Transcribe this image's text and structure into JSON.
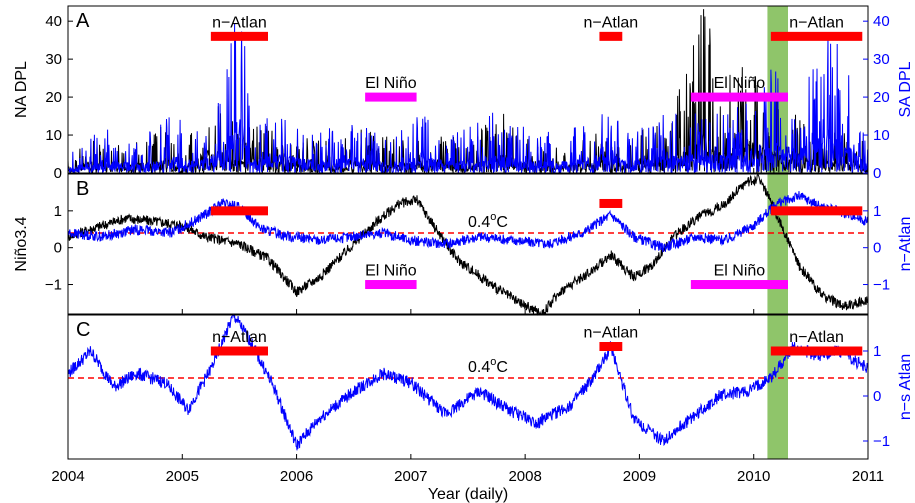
{
  "chart_data": [
    {
      "panel": "A",
      "type": "line",
      "xlim": [
        2004,
        2011
      ],
      "y_left": {
        "label": "NA DPL",
        "ticks": [
          0,
          10,
          20,
          30,
          40
        ],
        "range": [
          0,
          44
        ],
        "color": "#000000"
      },
      "y_right": {
        "label": "SA DPL",
        "ticks": [
          0,
          10,
          20,
          30,
          40
        ],
        "range": [
          0,
          44
        ],
        "color": "#0000ff"
      },
      "series": [
        {
          "axis": "left",
          "color": "#000000",
          "points": [
            [
              2004.0,
              3
            ],
            [
              2004.2,
              9
            ],
            [
              2004.5,
              6
            ],
            [
              2004.8,
              11
            ],
            [
              2005.0,
              4
            ],
            [
              2005.25,
              20
            ],
            [
              2005.5,
              9
            ],
            [
              2005.75,
              12
            ],
            [
              2006.0,
              8
            ],
            [
              2006.3,
              7
            ],
            [
              2006.6,
              10
            ],
            [
              2006.9,
              7
            ],
            [
              2007.2,
              11
            ],
            [
              2007.5,
              6
            ],
            [
              2007.8,
              15
            ],
            [
              2008.0,
              8
            ],
            [
              2008.3,
              6
            ],
            [
              2008.6,
              10
            ],
            [
              2008.9,
              8
            ],
            [
              2009.2,
              12
            ],
            [
              2009.45,
              24
            ],
            [
              2009.55,
              44
            ],
            [
              2009.7,
              17
            ],
            [
              2009.9,
              29
            ],
            [
              2010.05,
              21
            ],
            [
              2010.3,
              14
            ],
            [
              2010.6,
              9
            ],
            [
              2010.9,
              10
            ],
            [
              2011.0,
              5
            ]
          ]
        },
        {
          "axis": "right",
          "color": "#0000ff",
          "points": [
            [
              2004.0,
              4
            ],
            [
              2004.3,
              10
            ],
            [
              2004.6,
              7
            ],
            [
              2004.9,
              13
            ],
            [
              2005.15,
              9
            ],
            [
              2005.35,
              18
            ],
            [
              2005.5,
              43
            ],
            [
              2005.6,
              11
            ],
            [
              2005.9,
              14
            ],
            [
              2006.2,
              9
            ],
            [
              2006.5,
              12
            ],
            [
              2006.8,
              8
            ],
            [
              2007.1,
              13
            ],
            [
              2007.4,
              9
            ],
            [
              2007.7,
              14
            ],
            [
              2008.0,
              10
            ],
            [
              2008.3,
              9
            ],
            [
              2008.6,
              12
            ],
            [
              2008.75,
              20
            ],
            [
              2008.9,
              9
            ],
            [
              2009.2,
              13
            ],
            [
              2009.5,
              15
            ],
            [
              2009.8,
              13
            ],
            [
              2010.1,
              25
            ],
            [
              2010.4,
              18
            ],
            [
              2010.7,
              36
            ],
            [
              2010.9,
              14
            ],
            [
              2011.0,
              6
            ]
          ]
        }
      ],
      "bars": [
        {
          "label": "n−Atlan",
          "x0": 2005.25,
          "x1": 2005.75,
          "y": 36,
          "color": "#ff0000"
        },
        {
          "label": "n−Atlan",
          "x0": 2008.65,
          "x1": 2008.85,
          "y": 36,
          "color": "#ff0000"
        },
        {
          "label": "n−Atlan",
          "x0": 2010.15,
          "x1": 2010.95,
          "y": 36,
          "color": "#ff0000"
        },
        {
          "label": "El Niño",
          "x0": 2006.6,
          "x1": 2007.05,
          "y": 20,
          "color": "#ff00ff"
        },
        {
          "label": "El Niño",
          "x0": 2009.45,
          "x1": 2010.3,
          "y": 20,
          "color": "#ff00ff"
        }
      ]
    },
    {
      "panel": "B",
      "type": "line",
      "xlim": [
        2004,
        2011
      ],
      "y_left": {
        "label": "Niño3.4",
        "ticks": [
          -1,
          0,
          1
        ],
        "range": [
          -1.8,
          2.0
        ],
        "color": "#000000"
      },
      "y_right": {
        "label": "n−Atlan",
        "ticks": [
          -1,
          0,
          1
        ],
        "range": [
          -1.8,
          2.0
        ],
        "color": "#0000ff"
      },
      "threshold": {
        "value": 0.4,
        "label": "0.4",
        "superscript": "o",
        "unit": "C",
        "color": "#ff0000"
      },
      "series": [
        {
          "axis": "left",
          "color": "#000000",
          "points": [
            [
              2004.0,
              0.3
            ],
            [
              2004.2,
              0.5
            ],
            [
              2004.5,
              0.8
            ],
            [
              2004.8,
              0.7
            ],
            [
              2005.0,
              0.6
            ],
            [
              2005.2,
              0.3
            ],
            [
              2005.5,
              0.1
            ],
            [
              2005.75,
              -0.3
            ],
            [
              2006.0,
              -1.2
            ],
            [
              2006.2,
              -0.8
            ],
            [
              2006.5,
              0.1
            ],
            [
              2006.7,
              0.7
            ],
            [
              2006.9,
              1.2
            ],
            [
              2007.05,
              1.3
            ],
            [
              2007.2,
              0.6
            ],
            [
              2007.4,
              -0.3
            ],
            [
              2007.7,
              -1.0
            ],
            [
              2007.95,
              -1.5
            ],
            [
              2008.15,
              -1.8
            ],
            [
              2008.3,
              -1.2
            ],
            [
              2008.55,
              -0.7
            ],
            [
              2008.75,
              -0.2
            ],
            [
              2008.95,
              -0.8
            ],
            [
              2009.1,
              -0.5
            ],
            [
              2009.3,
              0.3
            ],
            [
              2009.5,
              0.8
            ],
            [
              2009.75,
              1.2
            ],
            [
              2009.9,
              1.7
            ],
            [
              2010.05,
              1.9
            ],
            [
              2010.2,
              0.9
            ],
            [
              2010.4,
              -0.5
            ],
            [
              2010.6,
              -1.3
            ],
            [
              2010.8,
              -1.6
            ],
            [
              2011.0,
              -1.4
            ]
          ]
        },
        {
          "axis": "right",
          "color": "#0000ff",
          "points": [
            [
              2004.0,
              0.4
            ],
            [
              2004.3,
              0.3
            ],
            [
              2004.6,
              0.5
            ],
            [
              2004.9,
              0.4
            ],
            [
              2005.15,
              0.8
            ],
            [
              2005.35,
              1.2
            ],
            [
              2005.5,
              1.1
            ],
            [
              2005.7,
              0.5
            ],
            [
              2005.95,
              0.3
            ],
            [
              2006.2,
              0.2
            ],
            [
              2006.5,
              0.3
            ],
            [
              2006.75,
              0.4
            ],
            [
              2007.0,
              0.2
            ],
            [
              2007.3,
              0.1
            ],
            [
              2007.6,
              0.3
            ],
            [
              2007.9,
              0.2
            ],
            [
              2008.2,
              0.1
            ],
            [
              2008.5,
              0.4
            ],
            [
              2008.75,
              0.9
            ],
            [
              2008.95,
              0.3
            ],
            [
              2009.2,
              0.0
            ],
            [
              2009.5,
              0.3
            ],
            [
              2009.75,
              0.2
            ],
            [
              2010.0,
              0.6
            ],
            [
              2010.2,
              1.2
            ],
            [
              2010.4,
              1.4
            ],
            [
              2010.6,
              1.1
            ],
            [
              2010.85,
              0.9
            ],
            [
              2011.0,
              0.7
            ]
          ]
        }
      ],
      "bars": [
        {
          "label": "",
          "x0": 2005.25,
          "x1": 2005.75,
          "y": 1.0,
          "color": "#ff0000"
        },
        {
          "label": "",
          "x0": 2008.65,
          "x1": 2008.85,
          "y": 1.2,
          "color": "#ff0000"
        },
        {
          "label": "",
          "x0": 2010.15,
          "x1": 2010.95,
          "y": 1.0,
          "color": "#ff0000"
        },
        {
          "label": "El Niño",
          "x0": 2006.6,
          "x1": 2007.05,
          "y": -1.0,
          "color": "#ff00ff"
        },
        {
          "label": "El Niño",
          "x0": 2009.45,
          "x1": 2010.3,
          "y": -1.0,
          "color": "#ff00ff"
        }
      ]
    },
    {
      "panel": "C",
      "type": "line",
      "xlim": [
        2004,
        2011
      ],
      "xlabel": "Year (daily)",
      "xticks": [
        2004,
        2005,
        2006,
        2007,
        2008,
        2009,
        2010,
        2011
      ],
      "y_left": {
        "label": "",
        "ticks": [],
        "range": [
          -1.4,
          1.8
        ],
        "color": "#000000"
      },
      "y_right": {
        "label": "n−s Atlan",
        "ticks": [
          -1,
          0,
          1
        ],
        "range": [
          -1.4,
          1.8
        ],
        "color": "#0000ff"
      },
      "threshold": {
        "value": 0.4,
        "label": "0.4",
        "superscript": "o",
        "unit": "C",
        "color": "#ff0000"
      },
      "series": [
        {
          "axis": "right",
          "color": "#0000ff",
          "points": [
            [
              2004.0,
              0.5
            ],
            [
              2004.2,
              1.0
            ],
            [
              2004.4,
              0.2
            ],
            [
              2004.6,
              0.5
            ],
            [
              2004.85,
              0.3
            ],
            [
              2005.05,
              -0.3
            ],
            [
              2005.25,
              0.6
            ],
            [
              2005.45,
              1.8
            ],
            [
              2005.6,
              1.2
            ],
            [
              2005.8,
              0.2
            ],
            [
              2006.0,
              -1.1
            ],
            [
              2006.2,
              -0.5
            ],
            [
              2006.5,
              0.1
            ],
            [
              2006.75,
              0.5
            ],
            [
              2007.0,
              0.3
            ],
            [
              2007.3,
              -0.4
            ],
            [
              2007.6,
              0.1
            ],
            [
              2007.85,
              -0.3
            ],
            [
              2008.1,
              -0.6
            ],
            [
              2008.4,
              -0.2
            ],
            [
              2008.6,
              0.4
            ],
            [
              2008.75,
              1.1
            ],
            [
              2008.95,
              -0.5
            ],
            [
              2009.2,
              -1.0
            ],
            [
              2009.45,
              -0.5
            ],
            [
              2009.7,
              0.0
            ],
            [
              2009.95,
              0.1
            ],
            [
              2010.15,
              0.4
            ],
            [
              2010.35,
              1.1
            ],
            [
              2010.55,
              0.9
            ],
            [
              2010.75,
              1.0
            ],
            [
              2011.0,
              0.6
            ]
          ]
        }
      ],
      "bars": [
        {
          "label": "n−Atlan",
          "x0": 2005.25,
          "x1": 2005.75,
          "y": 1.0,
          "color": "#ff0000"
        },
        {
          "label": "n−Atlan",
          "x0": 2008.65,
          "x1": 2008.85,
          "y": 1.1,
          "color": "#ff0000"
        },
        {
          "label": "n−Atlan",
          "x0": 2010.15,
          "x1": 2010.95,
          "y": 1.0,
          "color": "#ff0000"
        }
      ]
    }
  ],
  "highlight": {
    "x0": 2010.12,
    "x1": 2010.3,
    "color": "#8fc56a"
  }
}
